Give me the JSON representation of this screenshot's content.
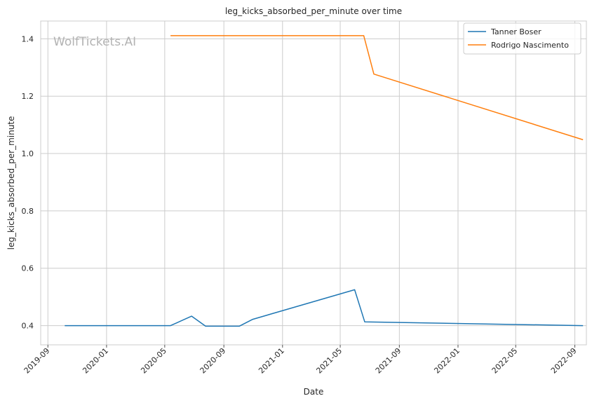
{
  "chart_data": {
    "type": "line",
    "title": "leg_kicks_absorbed_per_minute over time",
    "xlabel": "Date",
    "ylabel": "leg_kicks_absorbed_per_minute",
    "watermark": "WolfTickets.AI",
    "x_ticks": [
      "2019-09",
      "2020-01",
      "2020-05",
      "2020-09",
      "2021-01",
      "2021-05",
      "2021-09",
      "2022-01",
      "2022-05",
      "2022-09"
    ],
    "y_ticks": [
      "0.4",
      "0.6",
      "0.8",
      "1.0",
      "1.2",
      "1.4"
    ],
    "xlim": [
      "2019-08-17",
      "2022-09-25"
    ],
    "ylim": [
      0.333,
      1.462
    ],
    "grid": true,
    "legend_position": "top-right",
    "series": [
      {
        "name": "Tanner Boser",
        "color": "#1f77b4",
        "points": [
          {
            "x": "2019-10-06",
            "y": 0.4
          },
          {
            "x": "2020-05-13",
            "y": 0.4
          },
          {
            "x": "2020-06-26",
            "y": 0.433
          },
          {
            "x": "2020-07-25",
            "y": 0.398
          },
          {
            "x": "2020-10-03",
            "y": 0.398
          },
          {
            "x": "2020-10-31",
            "y": 0.422
          },
          {
            "x": "2021-05-31",
            "y": 0.525
          },
          {
            "x": "2021-06-21",
            "y": 0.413
          },
          {
            "x": "2022-09-18",
            "y": 0.4
          }
        ]
      },
      {
        "name": "Rodrigo Nascimento",
        "color": "#ff7f0e",
        "points": [
          {
            "x": "2020-05-13",
            "y": 1.411
          },
          {
            "x": "2021-06-19",
            "y": 1.411
          },
          {
            "x": "2021-07-10",
            "y": 1.277
          },
          {
            "x": "2022-09-18",
            "y": 1.048
          }
        ]
      }
    ]
  }
}
